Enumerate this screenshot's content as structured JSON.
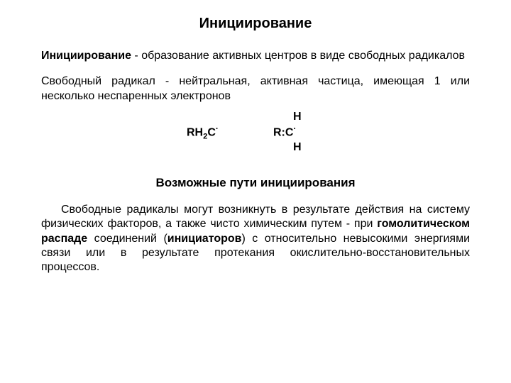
{
  "typography": {
    "title_fontsize": 20,
    "subtitle_fontsize": 17,
    "body_fontsize": 16,
    "font_family": "Arial",
    "title_weight": "700",
    "term_weight": "700",
    "text_color": "#000000",
    "background_color": "#ffffff",
    "line_height": 1.28
  },
  "title": "Инициирование",
  "paragraphs": {
    "def_term": "Инициирование",
    "def_rest": " - образование активных центров в виде свободных радикалов",
    "radical_def": "Свободный радикал - нейтральная, активная частица, имеющая 1 или несколько неспаренных электронов"
  },
  "formula": {
    "top_H": "H",
    "left_rhc": "RH",
    "left_sub": "2",
    "left_tail": "C",
    "left_dot": "·",
    "right_rc": "R:C",
    "right_dot": "·",
    "bottom_H": "H"
  },
  "subtitle": "Возможные пути инициирования",
  "body": {
    "p": "Свободные радикалы могут возникнуть в результате действия на систему физических факторов, а также чисто химическим путем - при ",
    "homolytic": "гомолитическом распаде",
    "mid": " соединений (",
    "initiators": "инициаторов",
    "tail": ") с относительно невысокими энергиями связи или в результате протекания окислительно-восстановительных процессов."
  }
}
